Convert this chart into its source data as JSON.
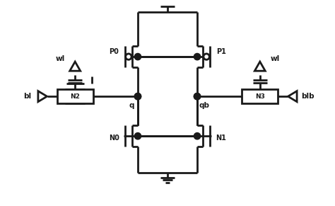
{
  "bg_color": "#ffffff",
  "line_color": "#1a1a1a",
  "lw": 2.0,
  "fig_width": 4.74,
  "fig_height": 2.91,
  "dpi": 100,
  "labels": {
    "wl_left": "wl",
    "wl_right": "wl",
    "bl": "bl",
    "blb": "blb",
    "q": "q",
    "qb": "qb",
    "N0": "N0",
    "N1": "N1",
    "N2": "N2",
    "N3": "N3",
    "P0": "P0",
    "P1": "P1"
  }
}
